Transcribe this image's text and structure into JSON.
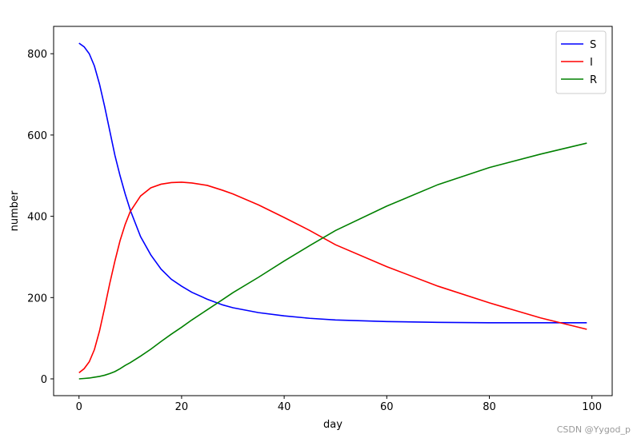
{
  "chart_data": {
    "type": "line",
    "x_label": "day",
    "y_label": "number",
    "x": [
      0,
      1,
      2,
      3,
      4,
      5,
      6,
      7,
      8,
      9,
      10,
      12,
      14,
      16,
      18,
      20,
      22,
      25,
      28,
      30,
      35,
      40,
      45,
      50,
      60,
      70,
      80,
      90,
      99
    ],
    "series": [
      {
        "name": "S",
        "color": "#0000ff",
        "values": [
          826,
          817,
          800,
          770,
          725,
          670,
          610,
          550,
          500,
          455,
          415,
          350,
          305,
          270,
          245,
          228,
          213,
          196,
          182,
          175,
          163,
          155,
          149,
          145,
          141,
          139,
          138,
          138,
          138
        ]
      },
      {
        "name": "I",
        "color": "#ff0000",
        "values": [
          15,
          25,
          42,
          72,
          118,
          175,
          235,
          290,
          340,
          380,
          412,
          450,
          470,
          479,
          483,
          484,
          482,
          476,
          464,
          455,
          428,
          397,
          365,
          330,
          276,
          228,
          187,
          150,
          122
        ]
      },
      {
        "name": "R",
        "color": "#008000",
        "values": [
          0,
          1,
          2,
          4,
          6,
          9,
          13,
          18,
          25,
          33,
          40,
          56,
          73,
          92,
          110,
          127,
          145,
          170,
          195,
          212,
          250,
          290,
          328,
          365,
          425,
          478,
          520,
          553,
          580
        ]
      }
    ],
    "xlim": [
      -4.95,
      103.95
    ],
    "xticks": [
      0,
      20,
      40,
      60,
      80,
      100
    ],
    "ylim": [
      -41.3,
      867.3
    ],
    "yticks": [
      0,
      200,
      400,
      600,
      800
    ],
    "legend": "upper right",
    "watermark": "CSDN @Yygod_p"
  }
}
